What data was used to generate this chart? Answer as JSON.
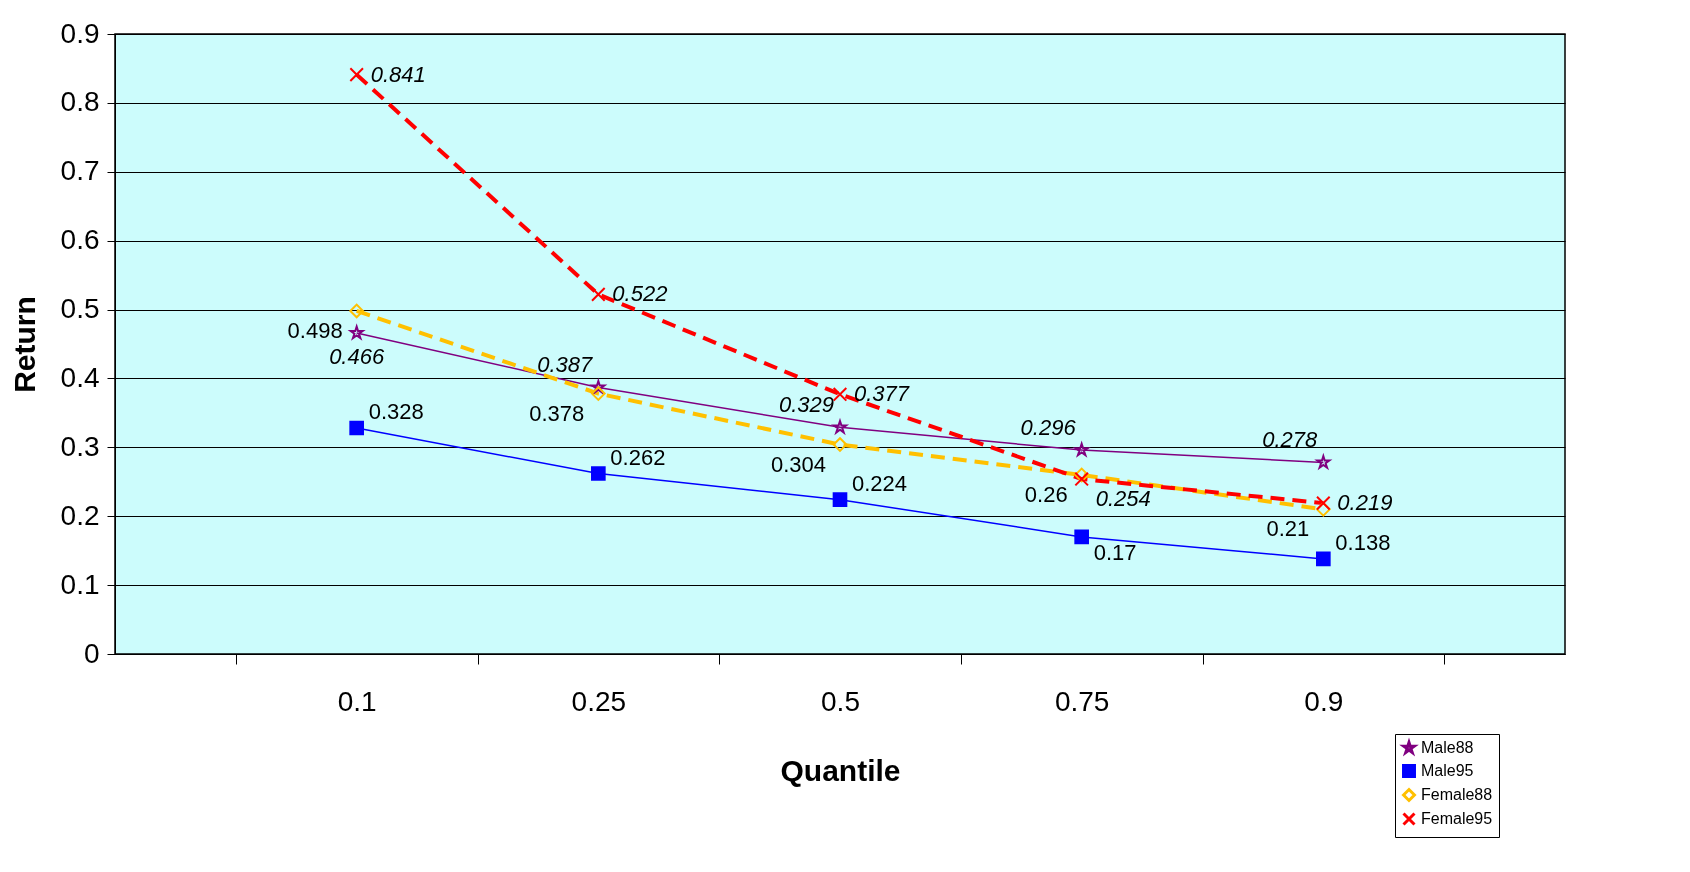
{
  "chart_data": {
    "type": "line",
    "xlabel": "Quantile",
    "ylabel": "Return",
    "categories": [
      "0.1",
      "0.25",
      "0.5",
      "0.75",
      "0.9"
    ],
    "series": [
      {
        "name": "Male88",
        "color": "#800080",
        "marker": "star",
        "line_style": "solid",
        "values": [
          0.466,
          0.387,
          0.329,
          0.296,
          0.278
        ]
      },
      {
        "name": "Male95",
        "color": "#0000ff",
        "marker": "square",
        "line_style": "solid",
        "values": [
          0.328,
          0.262,
          0.224,
          0.17,
          0.138
        ]
      },
      {
        "name": "Female88",
        "color": "#ffc000",
        "marker": "diamond",
        "line_style": "dashed",
        "values": [
          0.498,
          0.378,
          0.304,
          0.26,
          0.21
        ]
      },
      {
        "name": "Female95",
        "color": "#ff0000",
        "marker": "cross",
        "line_style": "dashed",
        "values": [
          0.841,
          0.522,
          0.377,
          0.254,
          0.219
        ]
      }
    ],
    "ylim": [
      0,
      0.9
    ],
    "yticks": [
      0,
      0.1,
      0.2,
      0.3,
      0.4,
      0.5,
      0.6,
      0.7,
      0.8,
      0.9
    ],
    "grid": "y",
    "legend": "bottom right",
    "data_labels": true
  }
}
